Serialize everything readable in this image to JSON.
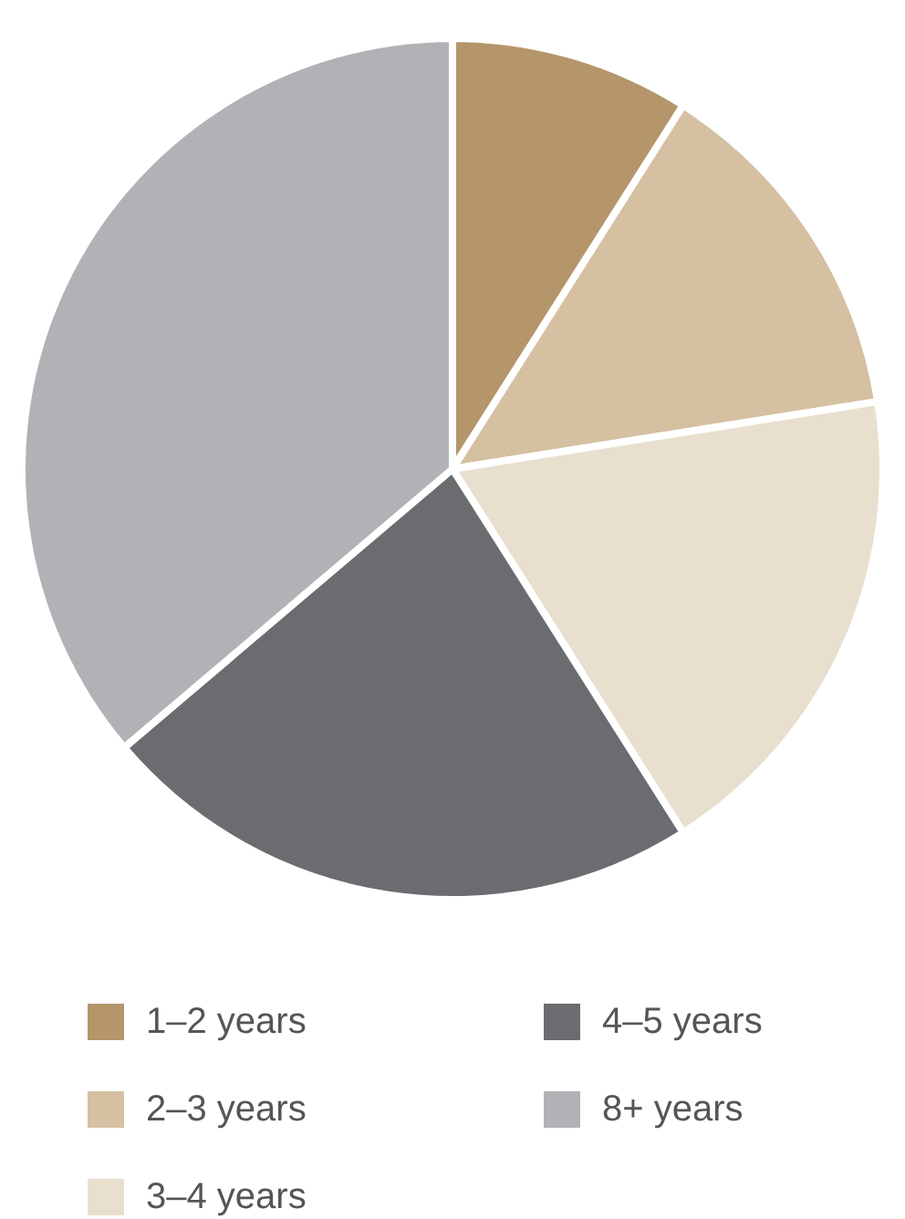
{
  "chart_data": {
    "type": "pie",
    "categories": [
      "1–2 years",
      "2–3 years",
      "3–4 years",
      "4–5 years",
      "8+ years"
    ],
    "values": [
      9,
      13.5,
      18.5,
      22.8,
      36.2
    ],
    "colors": [
      "#b5956a",
      "#d5c0a2",
      "#e8dfcf",
      "#6b6c70",
      "#b1b2b6"
    ],
    "legend": "bottom"
  }
}
